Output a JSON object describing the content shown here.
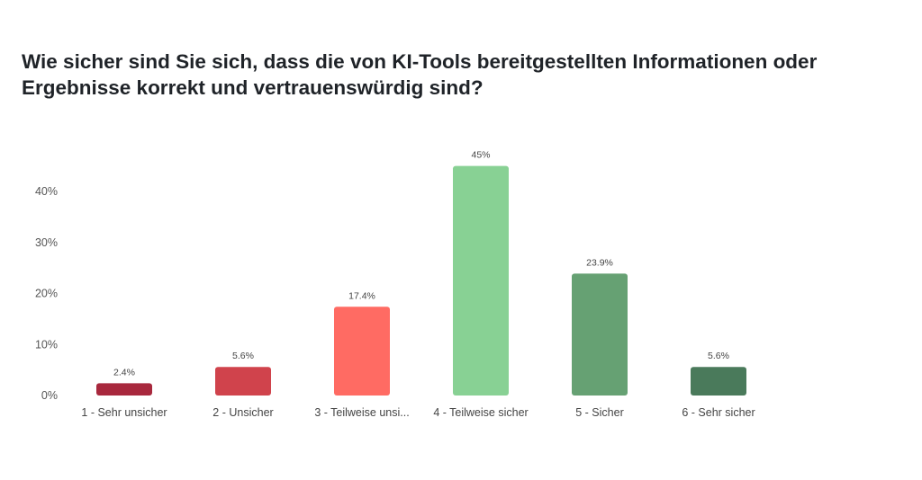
{
  "chart_data": {
    "type": "bar",
    "title": "Wie sicher sind Sie sich, dass die von KI-Tools bereitgestellten Informationen oder Ergebnisse korrekt und vertrauenswürdig sind?",
    "categories": [
      "1 - Sehr unsicher",
      "2 - Unsicher",
      "3 - Teilweise unsi...",
      "4 - Teilweise sicher",
      "5 - Sicher",
      "6 - Sehr sicher"
    ],
    "values": [
      2.4,
      5.6,
      17.4,
      45,
      23.9,
      5.6
    ],
    "data_labels": [
      "2.4%",
      "5.6%",
      "17.4%",
      "45%",
      "23.9%",
      "5.6%"
    ],
    "colors": [
      "#a8283d",
      "#d0434c",
      "#ff6b63",
      "#88d194",
      "#66a173",
      "#4a7a5b"
    ],
    "yticks": [
      0,
      10,
      20,
      30,
      40
    ],
    "ytick_labels": [
      "0%",
      "10%",
      "20%",
      "30%",
      "40%"
    ],
    "ylim": [
      0,
      45
    ],
    "xlabel": "",
    "ylabel": "",
    "grid": false,
    "legend": "none"
  }
}
